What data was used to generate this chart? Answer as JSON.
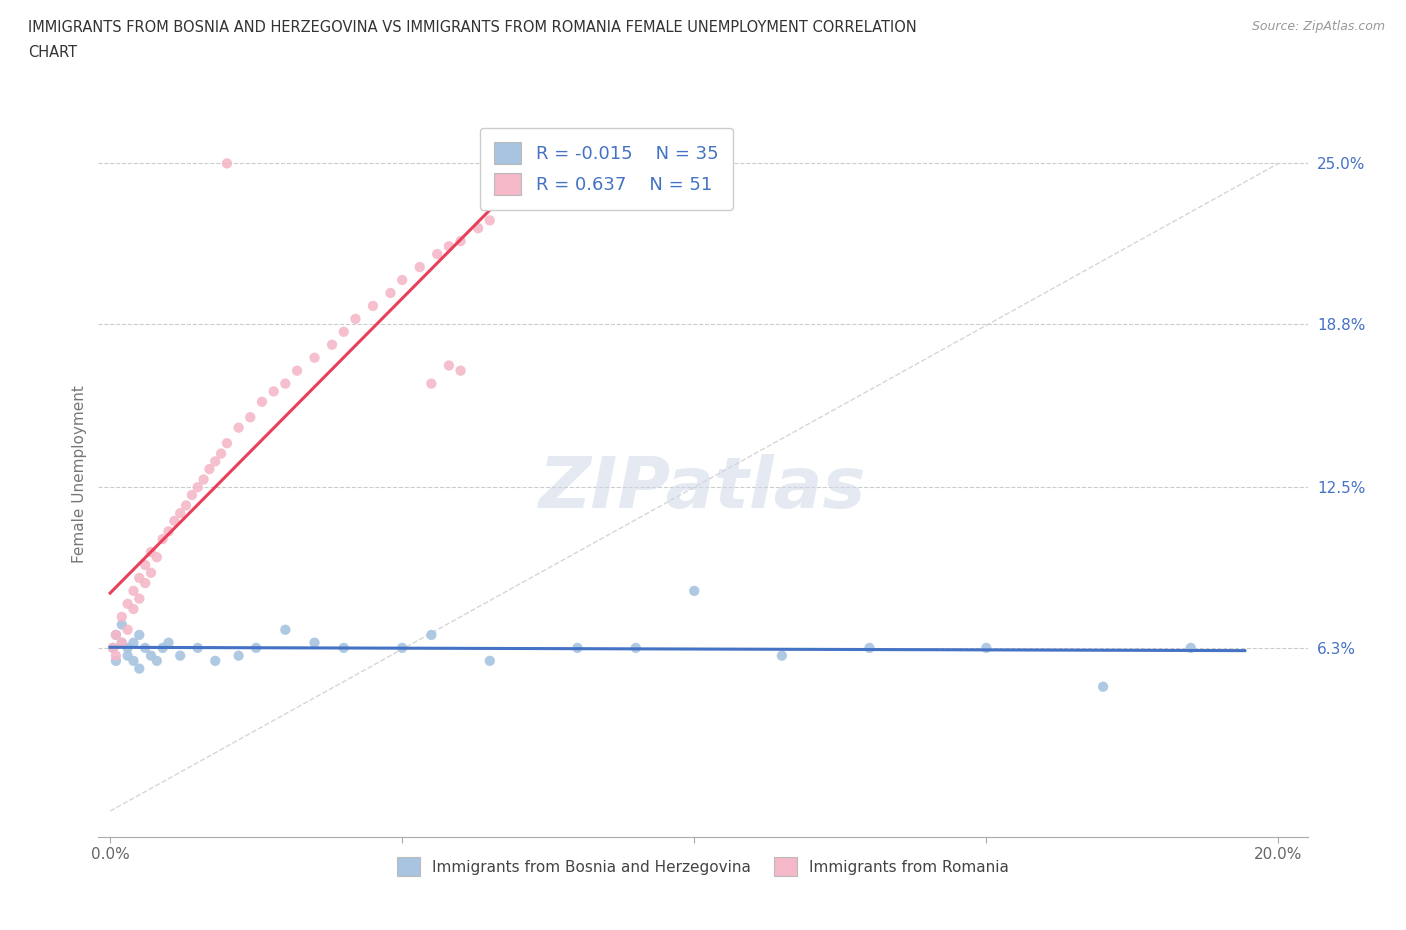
{
  "title_line1": "IMMIGRANTS FROM BOSNIA AND HERZEGOVINA VS IMMIGRANTS FROM ROMANIA FEMALE UNEMPLOYMENT CORRELATION",
  "title_line2": "CHART",
  "source": "Source: ZipAtlas.com",
  "ylabel": "Female Unemployment",
  "xlim": [
    -0.002,
    0.205
  ],
  "ylim": [
    -0.01,
    0.27
  ],
  "xticks": [
    0.0,
    0.05,
    0.1,
    0.15,
    0.2
  ],
  "xticklabels": [
    "0.0%",
    "",
    "",
    "",
    "20.0%"
  ],
  "ytick_values": [
    0.063,
    0.125,
    0.188,
    0.25
  ],
  "ytick_labels": [
    "6.3%",
    "12.5%",
    "18.8%",
    "25.0%"
  ],
  "grid_color": "#cccccc",
  "background_color": "#ffffff",
  "diag_line_color": "#cccccc",
  "watermark_text": "ZIPatlas",
  "series": [
    {
      "name": "Immigrants from Bosnia and Herzegovina",
      "color": "#a8c4e0",
      "line_color": "#4472c4",
      "R": -0.015,
      "N": 35,
      "x": [
        0.0005,
        0.001,
        0.001,
        0.002,
        0.002,
        0.003,
        0.003,
        0.004,
        0.004,
        0.005,
        0.005,
        0.006,
        0.007,
        0.008,
        0.009,
        0.01,
        0.012,
        0.015,
        0.018,
        0.022,
        0.025,
        0.03,
        0.035,
        0.04,
        0.05,
        0.055,
        0.065,
        0.08,
        0.09,
        0.1,
        0.115,
        0.13,
        0.15,
        0.17,
        0.185
      ],
      "y": [
        0.063,
        0.068,
        0.058,
        0.065,
        0.072,
        0.06,
        0.063,
        0.058,
        0.065,
        0.068,
        0.055,
        0.063,
        0.06,
        0.058,
        0.063,
        0.065,
        0.06,
        0.063,
        0.058,
        0.06,
        0.063,
        0.07,
        0.065,
        0.063,
        0.063,
        0.068,
        0.058,
        0.063,
        0.063,
        0.085,
        0.06,
        0.063,
        0.063,
        0.048,
        0.063
      ]
    },
    {
      "name": "Immigrants from Romania",
      "color": "#f4b8c8",
      "line_color": "#e8405a",
      "R": 0.637,
      "N": 51,
      "x": [
        0.0005,
        0.001,
        0.001,
        0.002,
        0.002,
        0.003,
        0.003,
        0.004,
        0.004,
        0.005,
        0.005,
        0.006,
        0.006,
        0.007,
        0.007,
        0.008,
        0.009,
        0.01,
        0.011,
        0.012,
        0.013,
        0.014,
        0.015,
        0.016,
        0.017,
        0.018,
        0.019,
        0.02,
        0.022,
        0.024,
        0.026,
        0.028,
        0.03,
        0.032,
        0.035,
        0.038,
        0.04,
        0.042,
        0.045,
        0.048,
        0.05,
        0.053,
        0.056,
        0.058,
        0.06,
        0.063,
        0.065,
        0.06,
        0.055,
        0.058,
        0.02
      ],
      "y": [
        0.063,
        0.06,
        0.068,
        0.065,
        0.075,
        0.07,
        0.08,
        0.078,
        0.085,
        0.082,
        0.09,
        0.088,
        0.095,
        0.092,
        0.1,
        0.098,
        0.105,
        0.108,
        0.112,
        0.115,
        0.118,
        0.122,
        0.125,
        0.128,
        0.132,
        0.135,
        0.138,
        0.142,
        0.148,
        0.152,
        0.158,
        0.162,
        0.165,
        0.17,
        0.175,
        0.18,
        0.185,
        0.19,
        0.195,
        0.2,
        0.205,
        0.21,
        0.215,
        0.218,
        0.22,
        0.225,
        0.228,
        0.17,
        0.165,
        0.172,
        0.25
      ]
    }
  ]
}
